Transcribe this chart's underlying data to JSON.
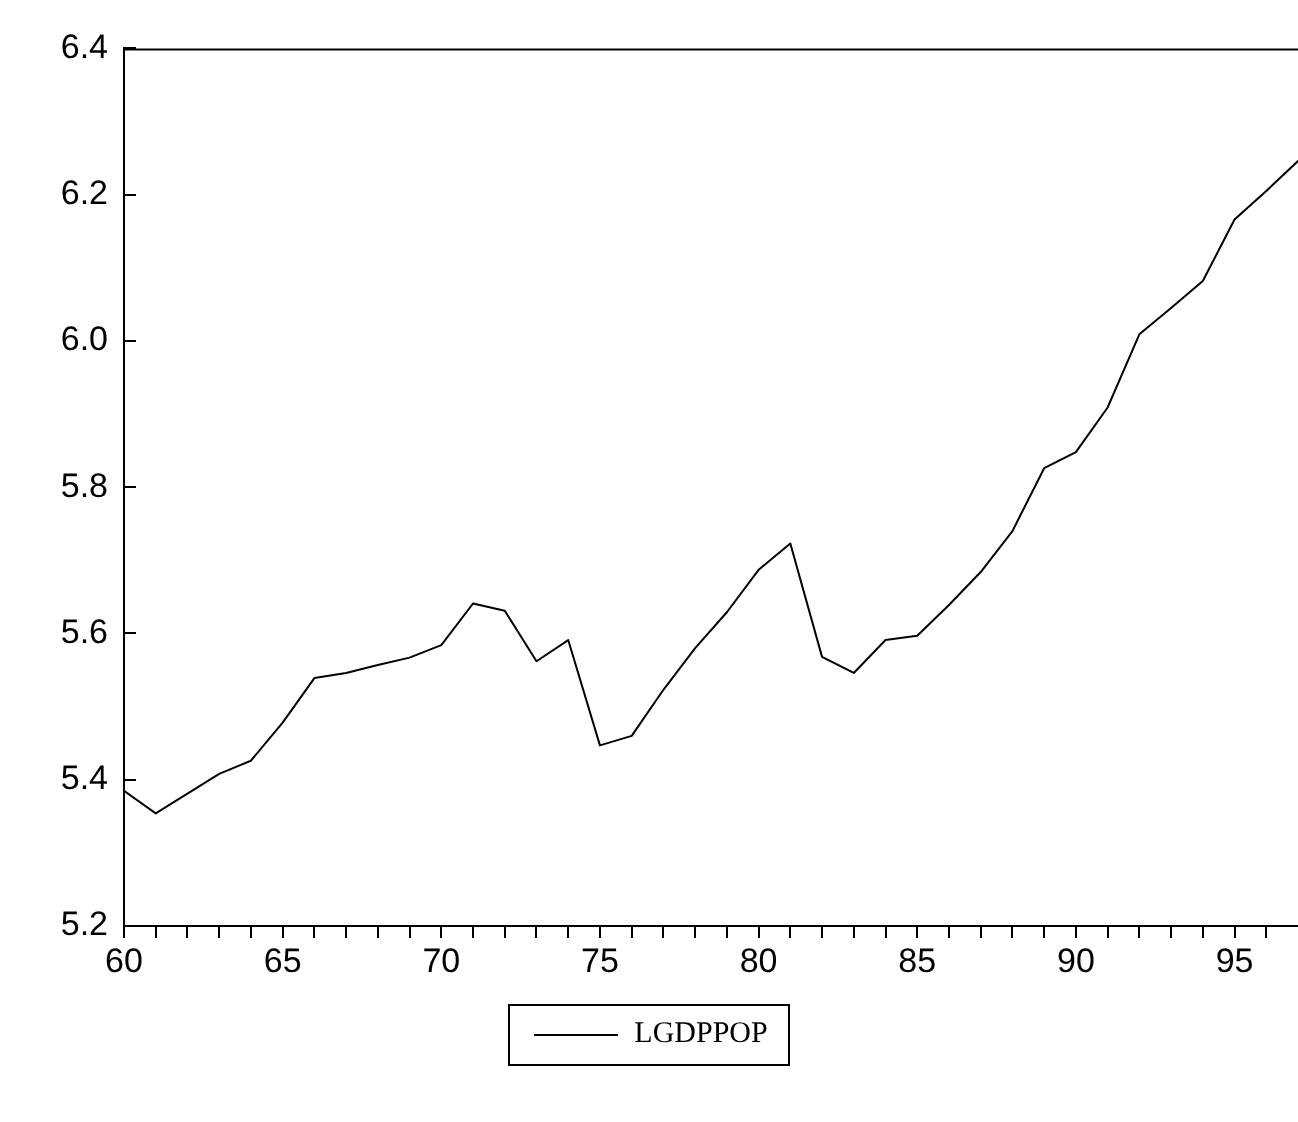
{
  "chart_data": {
    "type": "line",
    "x": [
      60,
      61,
      62,
      63,
      64,
      65,
      66,
      67,
      68,
      69,
      70,
      71,
      72,
      73,
      74,
      75,
      76,
      77,
      78,
      79,
      80,
      81,
      82,
      83,
      84,
      85,
      86,
      87,
      88,
      89,
      90,
      91,
      92,
      93,
      94,
      95,
      96,
      97
    ],
    "series": [
      {
        "name": "LGDPPOP",
        "color": "#000000",
        "values": [
          5.385,
          5.354,
          5.381,
          5.408,
          5.426,
          5.478,
          5.539,
          5.546,
          5.557,
          5.567,
          5.584,
          5.641,
          5.631,
          5.562,
          5.591,
          5.447,
          5.46,
          5.523,
          5.58,
          5.629,
          5.687,
          5.723,
          5.568,
          5.546,
          5.591,
          5.597,
          5.639,
          5.684,
          5.74,
          5.826,
          5.848,
          5.909,
          6.009,
          6.045,
          6.082,
          6.166,
          6.205,
          6.246
        ]
      }
    ],
    "xlim": [
      60,
      97
    ],
    "xticks": [
      60,
      {
        "value": 61,
        "label": null
      },
      {
        "value": 62,
        "label": null
      },
      {
        "value": 63,
        "label": null
      },
      {
        "value": 64,
        "label": null
      },
      65,
      {
        "value": 66,
        "label": null
      },
      {
        "value": 67,
        "label": null
      },
      {
        "value": 68,
        "label": null
      },
      {
        "value": 69,
        "label": null
      },
      70,
      {
        "value": 71,
        "label": null
      },
      {
        "value": 72,
        "label": null
      },
      {
        "value": 73,
        "label": null
      },
      {
        "value": 74,
        "label": null
      },
      75,
      {
        "value": 76,
        "label": null
      },
      {
        "value": 77,
        "label": null
      },
      {
        "value": 78,
        "label": null
      },
      {
        "value": 79,
        "label": null
      },
      80,
      {
        "value": 81,
        "label": null
      },
      {
        "value": 82,
        "label": null
      },
      {
        "value": 83,
        "label": null
      },
      {
        "value": 84,
        "label": null
      },
      85,
      {
        "value": 86,
        "label": null
      },
      {
        "value": 87,
        "label": null
      },
      {
        "value": 88,
        "label": null
      },
      {
        "value": 89,
        "label": null
      },
      90,
      {
        "value": 91,
        "label": null
      },
      {
        "value": 92,
        "label": null
      },
      {
        "value": 93,
        "label": null
      },
      {
        "value": 94,
        "label": null
      },
      95,
      {
        "value": 96,
        "label": null
      }
    ],
    "ylim": [
      5.2,
      6.4
    ],
    "yticks": [
      {
        "value": 5.2,
        "label": "5.2"
      },
      {
        "value": 5.4,
        "label": "5.4"
      },
      {
        "value": 5.6,
        "label": "5.6"
      },
      {
        "value": 5.8,
        "label": "5.8"
      },
      {
        "value": 6.0,
        "label": "6.0"
      },
      {
        "value": 6.2,
        "label": "6.2"
      },
      {
        "value": 6.4,
        "label": "6.4"
      }
    ],
    "grid": false,
    "legend": "bottom",
    "marker": "none",
    "line_style": "solid"
  }
}
